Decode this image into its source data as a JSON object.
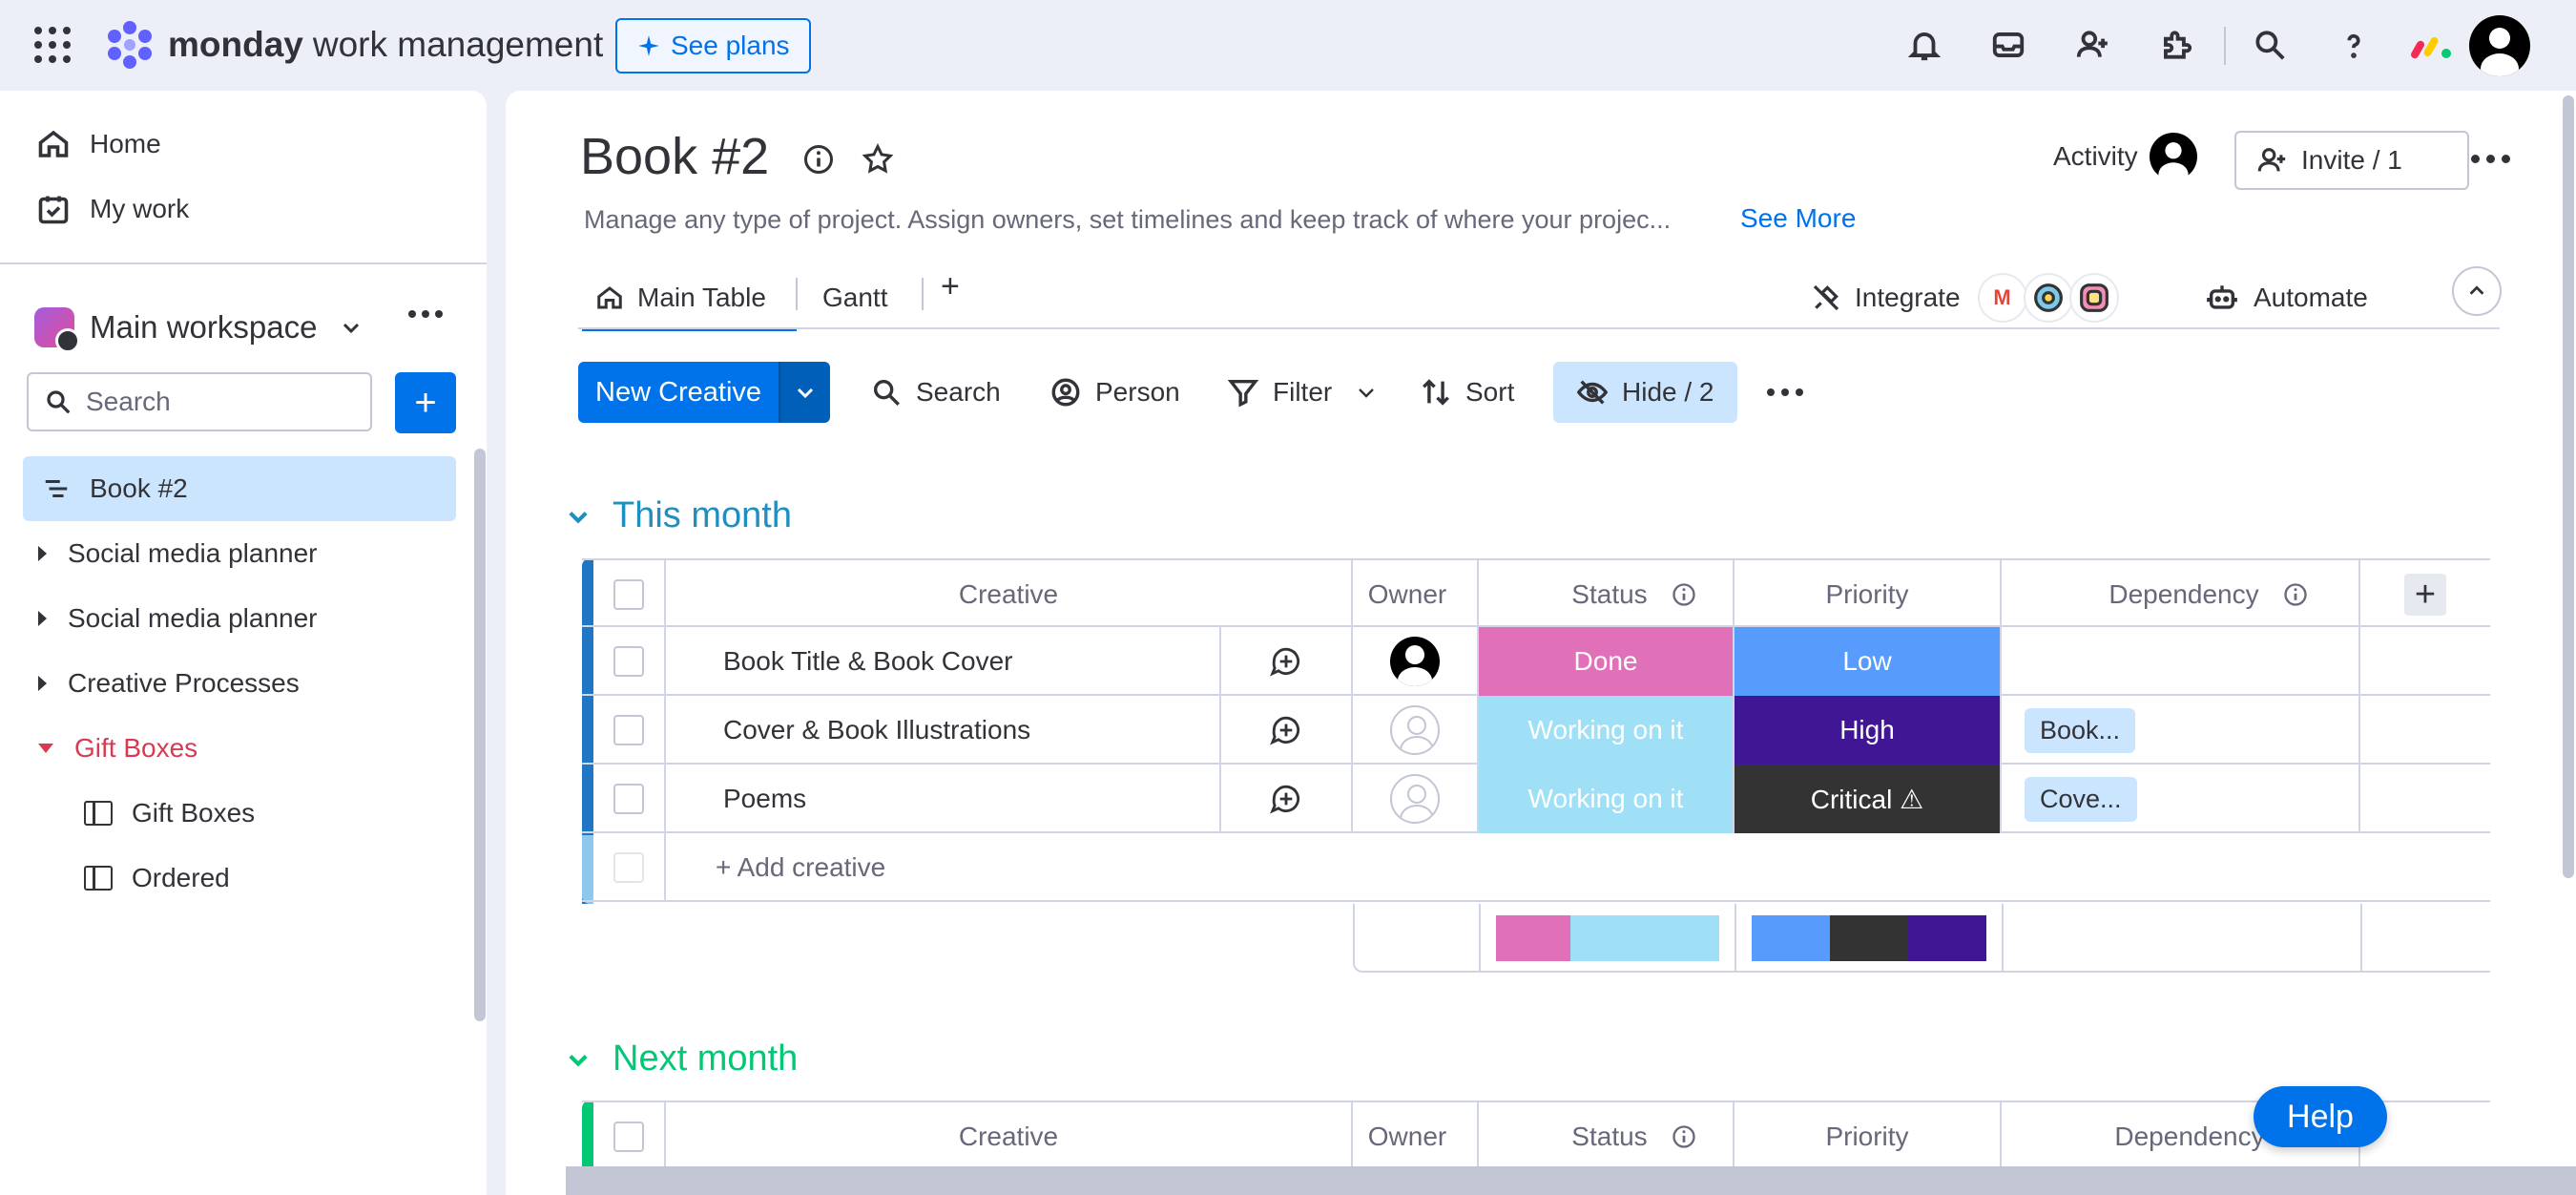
{
  "topbar": {
    "brand_name": "monday",
    "brand_sub": "work management",
    "see_plans": "See plans"
  },
  "sidebar": {
    "home": "Home",
    "my_work": "My work",
    "workspace": "Main workspace",
    "search_placeholder": "Search",
    "add": "+",
    "items": [
      {
        "label": "Book #2"
      },
      {
        "label": "Social media planner"
      },
      {
        "label": "Social media planner"
      },
      {
        "label": "Creative Processes"
      },
      {
        "label": "Gift Boxes"
      },
      {
        "label": "Gift Boxes"
      },
      {
        "label": "Ordered"
      }
    ]
  },
  "board": {
    "title": "Book #2",
    "description": "Manage any type of project. Assign owners, set timelines and keep track of where your projec...",
    "see_more": "See More",
    "activity": "Activity",
    "invite": "Invite / 1",
    "tabs": {
      "main_table": "Main Table",
      "gantt": "Gantt",
      "plus": "+"
    },
    "integrate": "Integrate",
    "automate": "Automate"
  },
  "toolbar": {
    "new_item": "New Creative",
    "search": "Search",
    "person": "Person",
    "filter": "Filter",
    "sort": "Sort",
    "hide": "Hide / 2"
  },
  "columns": {
    "item": "Creative",
    "owner": "Owner",
    "status": "Status",
    "priority": "Priority",
    "dependency": "Dependency"
  },
  "groups": [
    {
      "title": "This month",
      "color": "#1f8fc2",
      "strip_color": "#1f76c2",
      "add_item": "+ Add creative",
      "rows": [
        {
          "name": "Book Title & Book Cover",
          "status": "Done",
          "status_color": "#e070b8",
          "priority": "Low",
          "priority_color": "#579bfc",
          "dependency": ""
        },
        {
          "name": "Cover & Book Illustrations",
          "status": "Working on it",
          "status_color": "#9fe0f7",
          "priority": "High",
          "priority_color": "#401694",
          "dependency": "Book..."
        },
        {
          "name": "Poems",
          "status": "Working on it",
          "status_color": "#9fe0f7",
          "priority": "Critical ⚠",
          "priority_color": "#333333",
          "dependency": "Cove..."
        }
      ]
    },
    {
      "title": "Next month",
      "color": "#00c875",
      "strip_color": "#00c875"
    }
  ],
  "help": "Help"
}
